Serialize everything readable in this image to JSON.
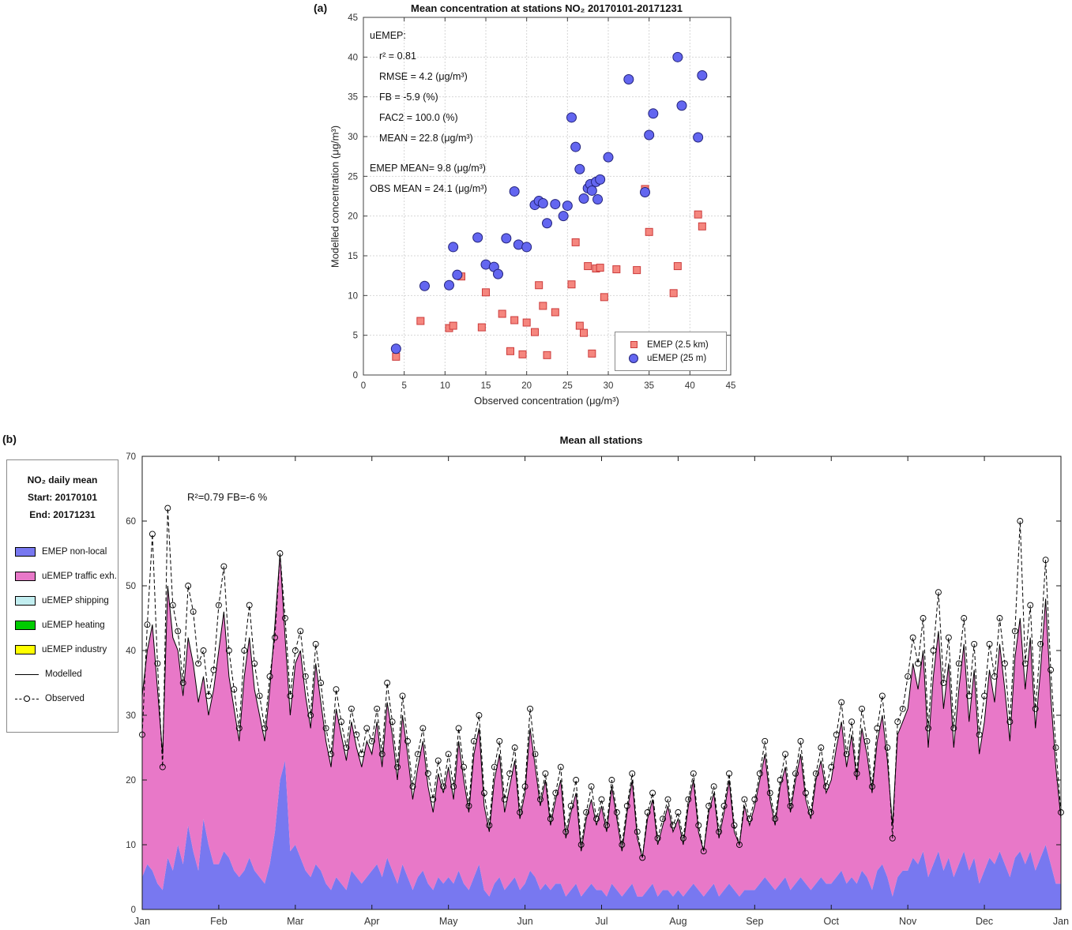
{
  "figure": {
    "panel_a_label": "(a)",
    "panel_b_label": "(b)"
  },
  "chart_data": [
    {
      "type": "scatter",
      "title": "Mean concentration at stations NO₂ 20170101-20171231",
      "xlabel": "Observed concentration (μg/m³)",
      "ylabel": "Modelled concentration (μg/m³)",
      "xlim": [
        0,
        45
      ],
      "ylim": [
        0,
        45
      ],
      "x_ticks": [
        0,
        5,
        10,
        15,
        20,
        25,
        30,
        35,
        40,
        45
      ],
      "y_ticks": [
        0,
        5,
        10,
        15,
        20,
        25,
        30,
        35,
        40,
        45
      ],
      "grid": true,
      "stats_lines": [
        "uEMEP:",
        "r² = 0.81",
        "RMSE = 4.2 (μg/m³)",
        "FB = -5.9 (%)",
        "FAC2 = 100.0 (%)",
        "MEAN  = 22.8 (μg/m³)",
        "EMEP MEAN= 9.8 (μg/m³)",
        "OBS MEAN = 24.1 (μg/m³)"
      ],
      "legend": [
        {
          "label": "EMEP (2.5 km)",
          "marker": "square",
          "fill": "#f5867e",
          "edge": "#cc3b3b"
        },
        {
          "label": "uEMEP (25 m)",
          "marker": "circle",
          "fill": "#6366f0",
          "edge": "#23237a"
        }
      ],
      "series": [
        {
          "name": "EMEP (2.5 km)",
          "marker": "square",
          "points": [
            [
              4,
              2.3
            ],
            [
              7,
              6.8
            ],
            [
              10.5,
              5.9
            ],
            [
              11,
              6.2
            ],
            [
              12,
              12.4
            ],
            [
              14.5,
              6.0
            ],
            [
              15,
              10.4
            ],
            [
              17,
              7.7
            ],
            [
              18,
              3.0
            ],
            [
              18.5,
              6.9
            ],
            [
              19.5,
              2.6
            ],
            [
              20,
              6.6
            ],
            [
              21,
              5.4
            ],
            [
              21.5,
              11.3
            ],
            [
              22,
              8.7
            ],
            [
              22.5,
              2.5
            ],
            [
              23.5,
              7.9
            ],
            [
              25.5,
              11.4
            ],
            [
              26,
              16.7
            ],
            [
              26.5,
              6.2
            ],
            [
              27,
              5.3
            ],
            [
              27.5,
              13.7
            ],
            [
              28,
              2.7
            ],
            [
              28.5,
              13.4
            ],
            [
              29,
              13.5
            ],
            [
              29.5,
              9.8
            ],
            [
              31,
              13.3
            ],
            [
              33.5,
              13.2
            ],
            [
              34.5,
              23.4
            ],
            [
              35,
              18.0
            ],
            [
              38,
              10.3
            ],
            [
              38.5,
              13.7
            ],
            [
              41,
              20.2
            ],
            [
              41.5,
              18.7
            ]
          ]
        },
        {
          "name": "uEMEP (25 m)",
          "marker": "circle",
          "points": [
            [
              4,
              3.3
            ],
            [
              7.5,
              11.2
            ],
            [
              10.5,
              11.3
            ],
            [
              11,
              16.1
            ],
            [
              11.5,
              12.6
            ],
            [
              14,
              17.3
            ],
            [
              15,
              13.9
            ],
            [
              16,
              13.6
            ],
            [
              16.5,
              12.7
            ],
            [
              17.5,
              17.2
            ],
            [
              18.5,
              23.1
            ],
            [
              19,
              16.4
            ],
            [
              20,
              16.1
            ],
            [
              21,
              21.4
            ],
            [
              21.5,
              21.9
            ],
            [
              22,
              21.6
            ],
            [
              22.5,
              19.1
            ],
            [
              23.5,
              21.5
            ],
            [
              24.5,
              20.0
            ],
            [
              25,
              21.3
            ],
            [
              25.5,
              32.4
            ],
            [
              26,
              28.7
            ],
            [
              26.5,
              25.9
            ],
            [
              27,
              22.2
            ],
            [
              27.5,
              23.5
            ],
            [
              27.8,
              24.0
            ],
            [
              28,
              23.2
            ],
            [
              28.5,
              24.3
            ],
            [
              28.7,
              22.1
            ],
            [
              29,
              24.6
            ],
            [
              30,
              27.4
            ],
            [
              32.5,
              37.2
            ],
            [
              34.5,
              23.0
            ],
            [
              35,
              30.2
            ],
            [
              35.5,
              32.9
            ],
            [
              38.5,
              40.0
            ],
            [
              39,
              33.9
            ],
            [
              41,
              29.9
            ],
            [
              41.5,
              37.7
            ]
          ]
        }
      ]
    },
    {
      "type": "area",
      "title": "Mean all stations",
      "annotation": "R²=0.79 FB=-6 %",
      "ylim": [
        0,
        70
      ],
      "y_ticks": [
        0,
        10,
        20,
        30,
        40,
        50,
        60,
        70
      ],
      "x_tick_labels": [
        "Jan",
        "Feb",
        "Mar",
        "Apr",
        "May",
        "Jun",
        "Jul",
        "Aug",
        "Sep",
        "Oct",
        "Nov",
        "Dec",
        "Jan"
      ],
      "grid": false,
      "sampling": "daily means Jan 1 - Dec 31 2017, sampled ~every 2 days (181 points, values estimated from plot)",
      "info_box": {
        "title": "NO₂ daily mean",
        "start": "Start: 20170101",
        "end": "End:  20171231"
      },
      "legend": [
        {
          "label": "EMEP non-local",
          "color": "#7878f0"
        },
        {
          "label": "uEMEP traffic exh.",
          "color": "#e878c8"
        },
        {
          "label": "uEMEP shipping",
          "color": "#c2eef0"
        },
        {
          "label": "uEMEP heating",
          "color": "#00cc00"
        },
        {
          "label": "uEMEP industry",
          "color": "#ffff00"
        },
        {
          "label": "Modelled",
          "type": "line"
        },
        {
          "label": "Observed",
          "type": "dashed-circle"
        }
      ],
      "series": {
        "observed": [
          27,
          44,
          58,
          38,
          22,
          62,
          47,
          43,
          35,
          50,
          46,
          38,
          40,
          33,
          37,
          47,
          53,
          40,
          34,
          28,
          40,
          47,
          38,
          33,
          28,
          36,
          42,
          55,
          45,
          33,
          40,
          43,
          36,
          30,
          41,
          35,
          28,
          24,
          34,
          29,
          25,
          31,
          27,
          24,
          28,
          26,
          31,
          24,
          35,
          29,
          22,
          33,
          26,
          19,
          24,
          28,
          21,
          17,
          23,
          19,
          24,
          19,
          28,
          22,
          16,
          26,
          30,
          18,
          13,
          22,
          26,
          17,
          21,
          25,
          15,
          19,
          31,
          24,
          17,
          21,
          14,
          18,
          22,
          12,
          16,
          20,
          10,
          15,
          19,
          14,
          17,
          13,
          20,
          15,
          10,
          16,
          21,
          12,
          8,
          15,
          18,
          11,
          14,
          17,
          13,
          15,
          11,
          17,
          21,
          13,
          9,
          16,
          19,
          12,
          16,
          21,
          13,
          10,
          17,
          14,
          17,
          21,
          26,
          18,
          14,
          20,
          24,
          16,
          21,
          26,
          18,
          15,
          21,
          25,
          19,
          22,
          27,
          32,
          24,
          29,
          21,
          31,
          26,
          19,
          28,
          33,
          25,
          11,
          29,
          31,
          36,
          42,
          38,
          45,
          28,
          40,
          49,
          35,
          42,
          28,
          38,
          45,
          33,
          41,
          27,
          33,
          41,
          36,
          45,
          38,
          29,
          43,
          60,
          38,
          47,
          31,
          41,
          54,
          37,
          25,
          15
        ],
        "modelled_total": [
          33,
          40,
          44,
          34,
          24,
          50,
          42,
          40,
          33,
          42,
          38,
          32,
          36,
          30,
          34,
          40,
          46,
          36,
          31,
          26,
          36,
          42,
          34,
          30,
          26,
          34,
          44,
          55,
          42,
          30,
          38,
          40,
          33,
          28,
          38,
          32,
          26,
          22,
          31,
          27,
          23,
          29,
          25,
          22,
          26,
          24,
          29,
          22,
          32,
          27,
          20,
          30,
          24,
          17,
          22,
          26,
          19,
          15,
          21,
          18,
          22,
          17,
          26,
          20,
          15,
          24,
          28,
          16,
          12,
          20,
          24,
          15,
          19,
          23,
          14,
          18,
          28,
          22,
          16,
          20,
          13,
          17,
          20,
          11,
          15,
          18,
          9,
          14,
          17,
          13,
          16,
          12,
          19,
          14,
          9,
          15,
          20,
          11,
          8,
          14,
          17,
          10,
          13,
          16,
          12,
          14,
          10,
          16,
          20,
          12,
          9,
          15,
          18,
          11,
          15,
          20,
          12,
          10,
          16,
          13,
          16,
          20,
          24,
          17,
          13,
          19,
          22,
          15,
          20,
          24,
          17,
          14,
          20,
          23,
          18,
          20,
          25,
          29,
          22,
          27,
          20,
          28,
          24,
          18,
          26,
          30,
          23,
          13,
          27,
          29,
          31,
          38,
          34,
          40,
          25,
          36,
          43,
          31,
          38,
          25,
          34,
          41,
          29,
          37,
          24,
          29,
          37,
          32,
          41,
          34,
          26,
          39,
          45,
          34,
          42,
          28,
          37,
          48,
          33,
          22,
          14
        ],
        "emep_nonlocal": [
          5,
          7,
          6,
          4,
          3,
          8,
          6,
          10,
          7,
          13,
          9,
          6,
          14,
          10,
          7,
          7,
          9,
          8,
          6,
          5,
          6,
          8,
          6,
          5,
          4,
          7,
          12,
          20,
          23,
          9,
          10,
          8,
          6,
          5,
          7,
          6,
          4,
          3,
          5,
          4,
          3,
          6,
          5,
          4,
          5,
          6,
          7,
          5,
          8,
          6,
          4,
          7,
          5,
          3,
          5,
          6,
          4,
          3,
          5,
          4,
          5,
          4,
          6,
          4,
          3,
          5,
          7,
          3,
          2,
          4,
          5,
          3,
          4,
          5,
          3,
          4,
          6,
          5,
          3,
          4,
          3,
          4,
          4,
          2,
          3,
          4,
          2,
          3,
          4,
          3,
          3,
          2,
          4,
          3,
          2,
          3,
          4,
          2,
          2,
          3,
          4,
          2,
          3,
          3,
          2,
          3,
          2,
          3,
          4,
          3,
          2,
          3,
          4,
          2,
          3,
          4,
          3,
          2,
          3,
          3,
          3,
          4,
          5,
          4,
          3,
          4,
          5,
          3,
          4,
          5,
          4,
          3,
          4,
          5,
          4,
          4,
          5,
          6,
          4,
          5,
          4,
          6,
          5,
          3,
          6,
          7,
          5,
          2,
          5,
          6,
          6,
          8,
          7,
          9,
          5,
          7,
          9,
          6,
          8,
          5,
          7,
          9,
          6,
          8,
          4,
          6,
          8,
          7,
          9,
          7,
          5,
          8,
          9,
          7,
          9,
          6,
          8,
          10,
          7,
          4,
          4
        ],
        "shipping_heating_industry_note": "uEMEP shipping / heating / industry contributions ≈ 0 (not visible in plot)"
      }
    }
  ]
}
